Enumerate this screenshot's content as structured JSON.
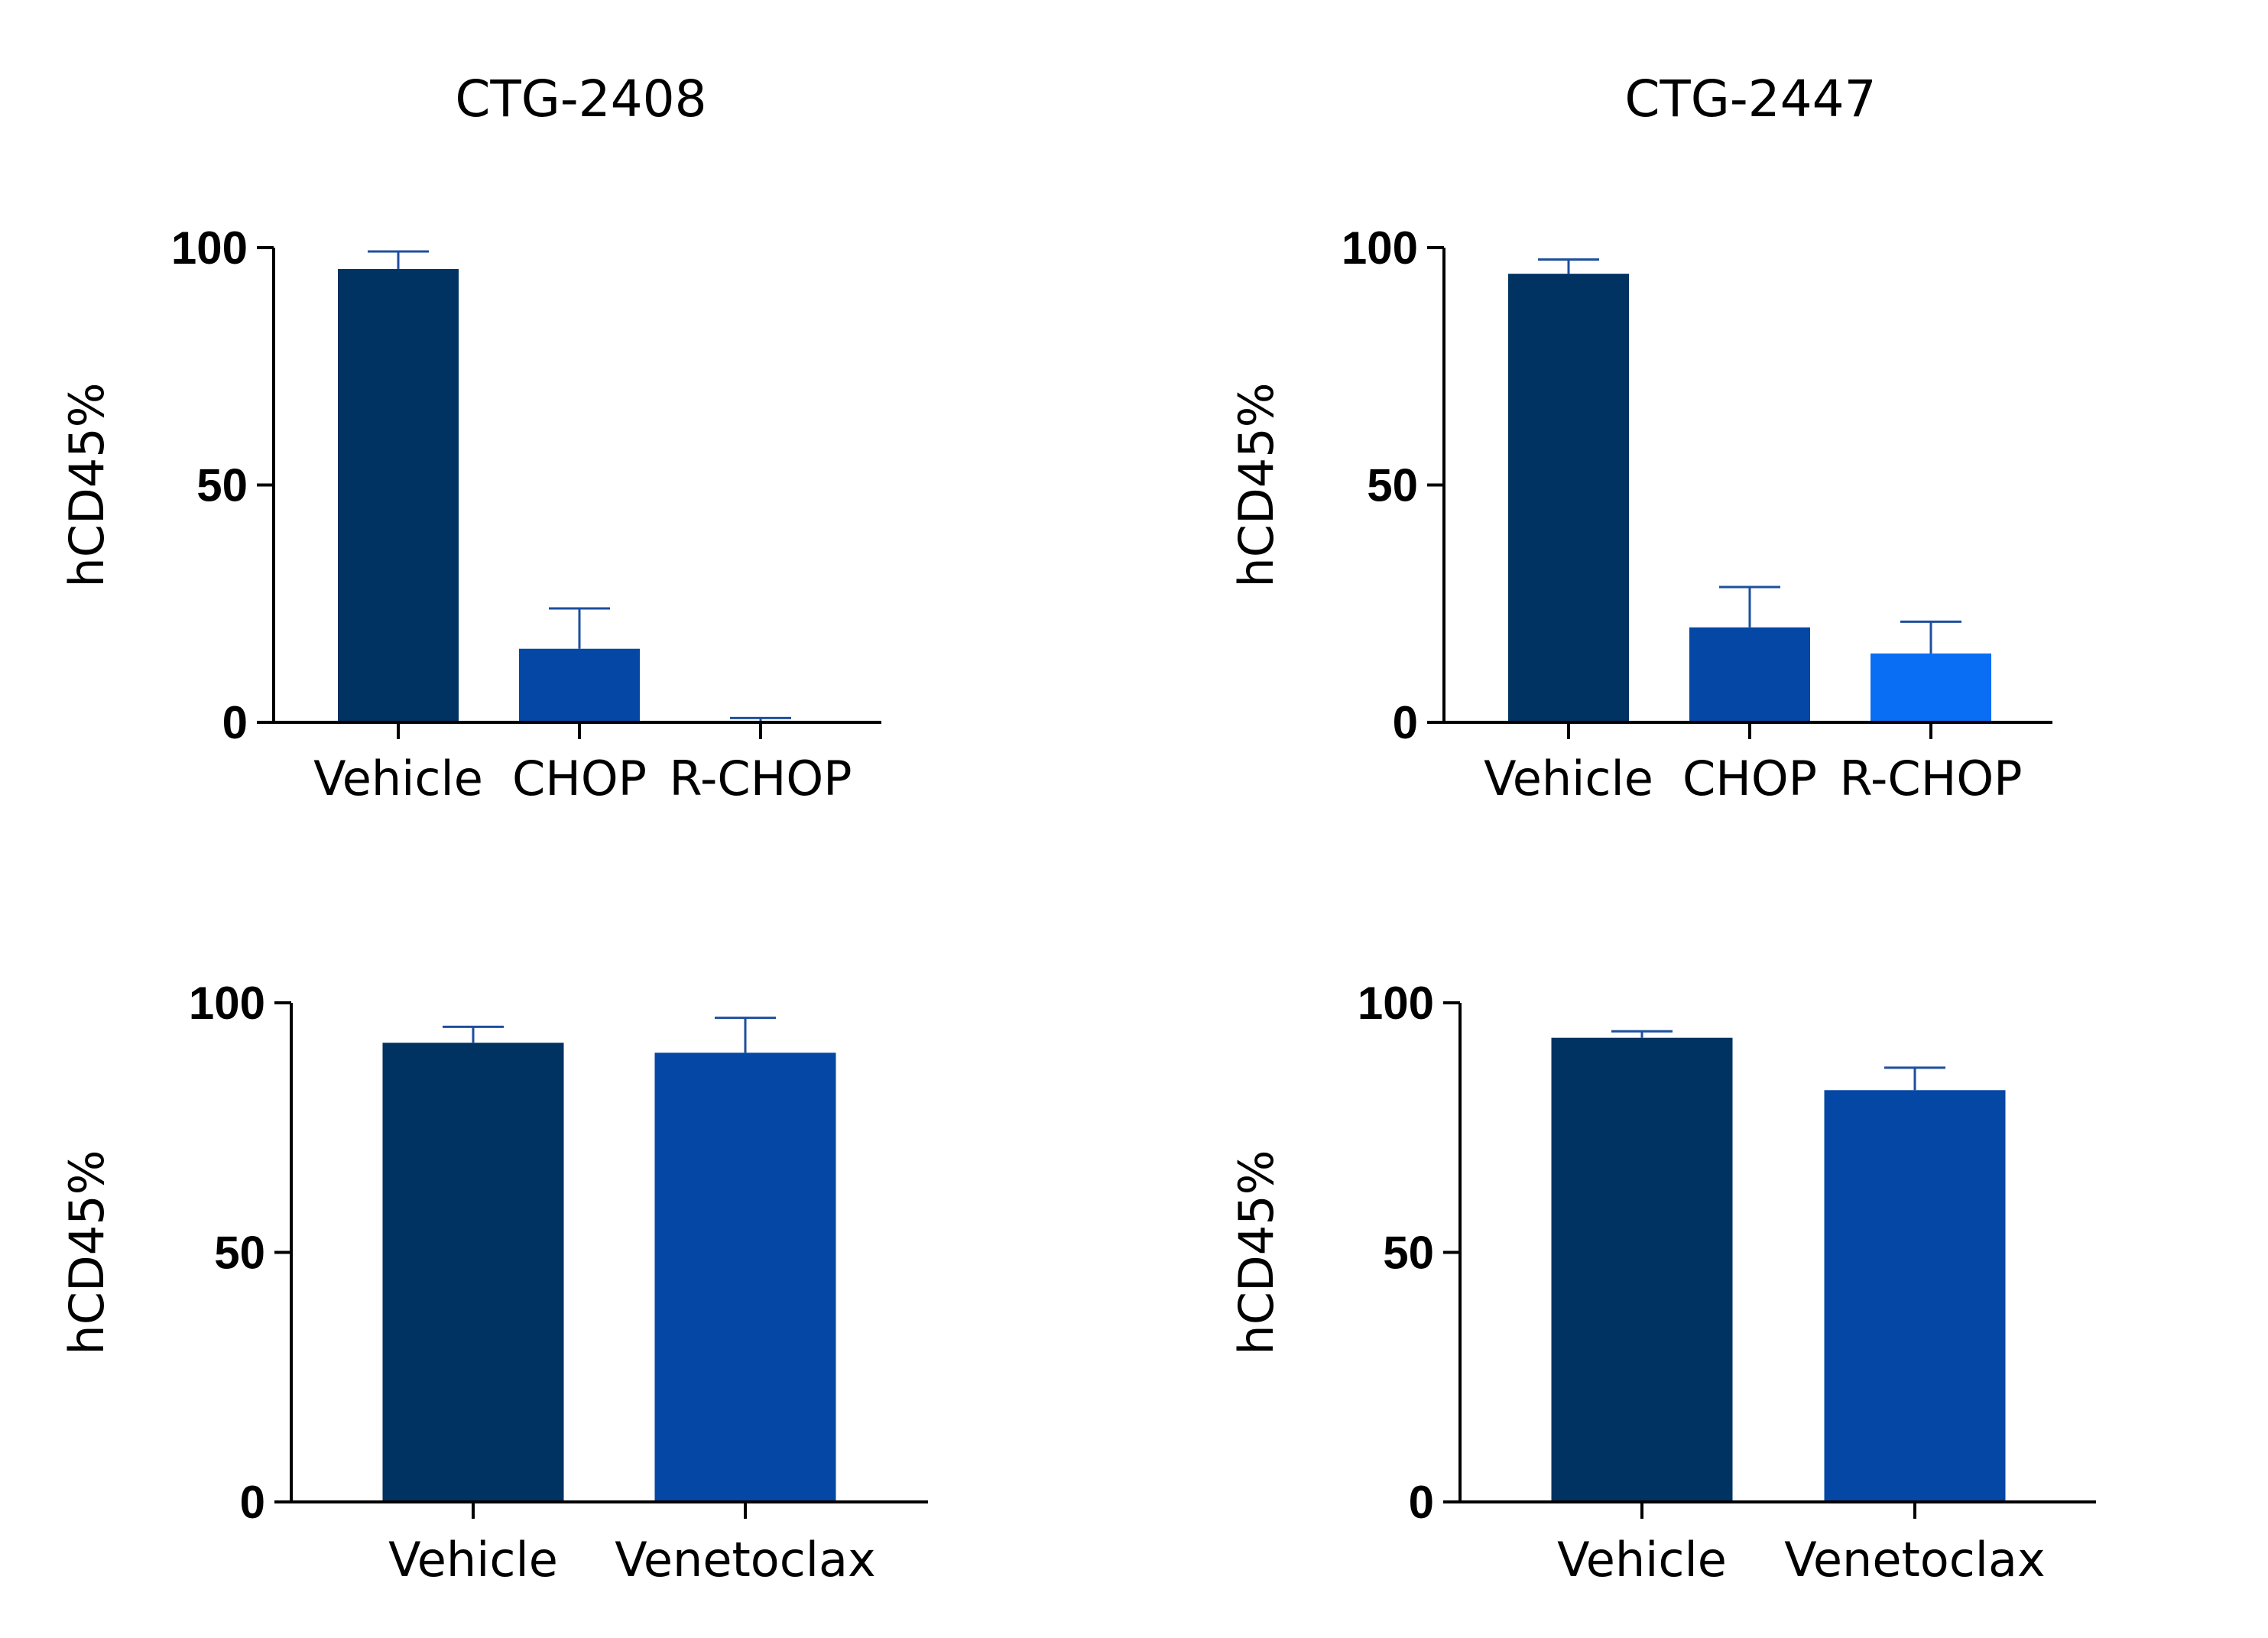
{
  "column_titles": [
    "CTG-2408",
    "CTG-2447"
  ],
  "colors": {
    "vehicle": "#003262",
    "chop": "#0447A5",
    "rchop": "#0A6EF5",
    "venetoclax": "#0447A5",
    "error_bar": "#1D4F9E",
    "axis": "#000000"
  },
  "chart_data": [
    {
      "type": "bar",
      "title": "",
      "ylabel": "hCD45%",
      "xlabel": "",
      "categories": [
        "Vehicle",
        "CHOP",
        "R-CHOP"
      ],
      "values": [
        95.5,
        15.5,
        0.3
      ],
      "errors": [
        3.7,
        8.5,
        0.6
      ],
      "ylim": [
        0,
        100
      ],
      "yticks": [
        "0",
        "50",
        "100"
      ],
      "grid": false
    },
    {
      "type": "bar",
      "title": "",
      "ylabel": "hCD45%",
      "xlabel": "",
      "categories": [
        "Vehicle",
        "CHOP",
        "R-CHOP"
      ],
      "values": [
        94.5,
        20,
        14.5
      ],
      "errors": [
        3,
        8.5,
        6.7
      ],
      "ylim": [
        0,
        100
      ],
      "yticks": [
        "0",
        "50",
        "100"
      ],
      "grid": false
    },
    {
      "type": "bar",
      "title": "",
      "ylabel": "hCD45%",
      "xlabel": "",
      "categories": [
        "Vehicle",
        "Venetoclax"
      ],
      "values": [
        92,
        90
      ],
      "errors": [
        3.2,
        7
      ],
      "ylim": [
        0,
        100
      ],
      "yticks": [
        "0",
        "50",
        "100"
      ],
      "grid": false
    },
    {
      "type": "bar",
      "title": "",
      "ylabel": "hCD45%",
      "xlabel": "",
      "categories": [
        "Vehicle",
        "Venetoclax"
      ],
      "values": [
        93,
        82.5
      ],
      "errors": [
        1.3,
        4.5
      ],
      "ylim": [
        0,
        100
      ],
      "yticks": [
        "0",
        "50",
        "100"
      ],
      "grid": false
    }
  ]
}
